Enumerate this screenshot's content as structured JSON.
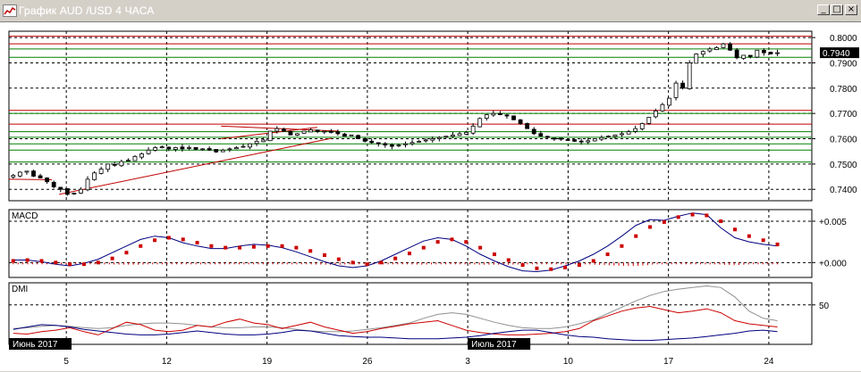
{
  "window": {
    "title": "График AUD /USD  4 ЧАСА",
    "buttons": {
      "minimize": "_",
      "maximize": "□",
      "close": "×"
    }
  },
  "colors": {
    "background": "#ffffff",
    "candle": "#000000",
    "support_line": "#008000",
    "resistance_line": "#c00000",
    "trend_line": "#c00000",
    "macd_signal": "#cc0000",
    "macd_line": "#000080",
    "dmi_adx": "#909090",
    "dmi_plus": "#cc0000",
    "dmi_minus": "#000080",
    "date_badge": "#000000"
  },
  "chart_data": [
    {
      "panel": "price",
      "type": "candlestick",
      "y_ticks": [
        "0.8000",
        "0.7900",
        "0.7800",
        "0.7700",
        "0.7600",
        "0.7500",
        "0.7400"
      ],
      "ylim": [
        0.7355,
        0.8025
      ],
      "current_price": "0.7940",
      "x_ticks": [
        "5",
        "12",
        "19",
        "26",
        "3",
        "10",
        "17",
        "24"
      ],
      "x_tick_positions": [
        4,
        11,
        18,
        25,
        32,
        39,
        46,
        53
      ],
      "xlim": [
        0,
        56
      ],
      "date_badges": [
        {
          "text": "Июнь 2017",
          "x": 0
        },
        {
          "text": "Июль 2017",
          "x": 32
        }
      ],
      "horizontal_levels": [
        {
          "value": 0.8005,
          "color": "red"
        },
        {
          "value": 0.7975,
          "color": "red"
        },
        {
          "value": 0.7955,
          "color": "green"
        },
        {
          "value": 0.7922,
          "color": "green"
        },
        {
          "value": 0.7712,
          "color": "red"
        },
        {
          "value": 0.77,
          "color": "green"
        },
        {
          "value": 0.7658,
          "color": "red"
        },
        {
          "value": 0.7628,
          "color": "green"
        },
        {
          "value": 0.7606,
          "color": "green"
        },
        {
          "value": 0.758,
          "color": "green"
        },
        {
          "value": 0.7555,
          "color": "green"
        },
        {
          "value": 0.7508,
          "color": "green"
        }
      ],
      "trend_lines": [
        {
          "x1": 0.0,
          "y1": 0.744,
          "x2": 3.0,
          "y2": 0.7438
        },
        {
          "x1": 3.5,
          "y1": 0.738,
          "x2": 22.5,
          "y2": 0.7602
        },
        {
          "x1": 14.8,
          "y1": 0.765,
          "x2": 23.0,
          "y2": 0.763
        },
        {
          "x1": 14.8,
          "y1": 0.76,
          "x2": 21.5,
          "y2": 0.7645
        }
      ],
      "close": [
        0.7455,
        0.7468,
        0.7472,
        0.7452,
        0.7445,
        0.743,
        0.741,
        0.74,
        0.738,
        0.7385,
        0.74,
        0.744,
        0.7465,
        0.748,
        0.75,
        0.7495,
        0.751,
        0.7515,
        0.753,
        0.754,
        0.7555,
        0.7565,
        0.7568,
        0.756,
        0.7565,
        0.756,
        0.7565,
        0.7558,
        0.756,
        0.7555,
        0.7548,
        0.7555,
        0.756,
        0.7565,
        0.757,
        0.758,
        0.759,
        0.7595,
        0.763,
        0.764,
        0.763,
        0.7615,
        0.762,
        0.763,
        0.7635,
        0.7628,
        0.763,
        0.7625,
        0.762,
        0.761,
        0.7615,
        0.76,
        0.759,
        0.7585,
        0.758,
        0.7575,
        0.757,
        0.7575,
        0.758,
        0.7585,
        0.759,
        0.7595,
        0.76,
        0.7605,
        0.761,
        0.7615,
        0.762,
        0.7625,
        0.765,
        0.768,
        0.7695,
        0.77,
        0.7695,
        0.769,
        0.7675,
        0.766,
        0.764,
        0.762,
        0.761,
        0.7605,
        0.76,
        0.7598,
        0.7595,
        0.759,
        0.7588,
        0.7592,
        0.76,
        0.7605,
        0.761,
        0.7615,
        0.762,
        0.7628,
        0.764,
        0.766,
        0.7685,
        0.771,
        0.7735,
        0.776,
        0.782,
        0.78,
        0.79,
        0.7935,
        0.7945,
        0.7955,
        0.796,
        0.7975,
        0.795,
        0.792,
        0.793,
        0.7925,
        0.795,
        0.794,
        0.7935,
        0.794
      ]
    },
    {
      "panel": "macd",
      "type": "line+histogram",
      "title": "MACD",
      "y_ticks": [
        "+0.005",
        "+0.000"
      ],
      "ylim": [
        -0.0018,
        0.0064
      ],
      "signal_series": [
        0.0002,
        0.0003,
        0.0002,
        0.0,
        -0.0002,
        -0.0002,
        0.0,
        0.0005,
        0.0012,
        0.002,
        0.0027,
        0.003,
        0.0028,
        0.0024,
        0.002,
        0.0018,
        0.0018,
        0.0019,
        0.002,
        0.002,
        0.0018,
        0.0014,
        0.0009,
        0.0004,
        0.0,
        -0.0002,
        0.0,
        0.0005,
        0.0011,
        0.0018,
        0.0025,
        0.0028,
        0.0025,
        0.0018,
        0.001,
        0.0003,
        -0.0003,
        -0.0007,
        -0.0008,
        -0.0006,
        -0.0003,
        0.0002,
        0.001,
        0.002,
        0.0032,
        0.0043,
        0.0049,
        0.0055,
        0.0058,
        0.0057,
        0.005,
        0.004,
        0.0032,
        0.0027,
        0.0022
      ],
      "macd_series": [
        0.0003,
        0.0003,
        0.0001,
        -0.0002,
        -0.0004,
        -0.0001,
        0.0004,
        0.0012,
        0.002,
        0.0028,
        0.0032,
        0.003,
        0.0024,
        0.002,
        0.0017,
        0.0017,
        0.002,
        0.0022,
        0.0021,
        0.0018,
        0.0013,
        0.0007,
        0.0001,
        -0.0004,
        -0.0006,
        -0.0004,
        0.0002,
        0.001,
        0.0018,
        0.0026,
        0.003,
        0.0028,
        0.002,
        0.001,
        0.0002,
        -0.0005,
        -0.001,
        -0.0011,
        -0.0009,
        -0.0004,
        0.0002,
        0.001,
        0.002,
        0.0032,
        0.0045,
        0.0052,
        0.0051,
        0.0056,
        0.006,
        0.0058,
        0.0042,
        0.003,
        0.0025,
        0.0022,
        0.002
      ]
    },
    {
      "panel": "dmi",
      "type": "line",
      "title": "DMI",
      "y_ticks": [
        "50"
      ],
      "ylim": [
        0,
        78
      ],
      "adx_series": [
        20,
        21,
        23,
        24,
        23,
        21,
        20,
        21,
        24,
        26,
        27,
        27,
        26,
        24,
        22,
        21,
        21,
        22,
        22,
        21,
        19,
        17,
        16,
        16,
        17,
        19,
        21,
        24,
        27,
        33,
        38,
        40,
        38,
        33,
        28,
        24,
        21,
        20,
        20,
        22,
        26,
        31,
        39,
        47,
        55,
        62,
        67,
        70,
        72,
        74,
        72,
        60,
        42,
        33,
        30
      ],
      "plus_di_series": [
        14,
        13,
        16,
        18,
        21,
        16,
        12,
        20,
        28,
        25,
        18,
        16,
        18,
        24,
        22,
        28,
        32,
        27,
        25,
        20,
        24,
        28,
        22,
        18,
        14,
        16,
        20,
        23,
        26,
        28,
        30,
        24,
        18,
        15,
        13,
        12,
        12,
        13,
        14,
        16,
        20,
        30,
        36,
        42,
        46,
        48,
        44,
        40,
        42,
        45,
        40,
        30,
        26,
        24,
        22
      ],
      "minus_di_series": [
        19,
        22,
        25,
        24,
        22,
        19,
        17,
        15,
        13,
        12,
        12,
        13,
        15,
        17,
        15,
        13,
        12,
        12,
        13,
        15,
        18,
        17,
        14,
        11,
        10,
        9,
        9,
        8,
        7,
        7,
        7,
        8,
        9,
        11,
        14,
        16,
        18,
        18,
        15,
        12,
        10,
        9,
        7,
        6,
        5,
        5,
        6,
        7,
        8,
        10,
        12,
        14,
        17,
        18,
        16
      ]
    }
  ]
}
